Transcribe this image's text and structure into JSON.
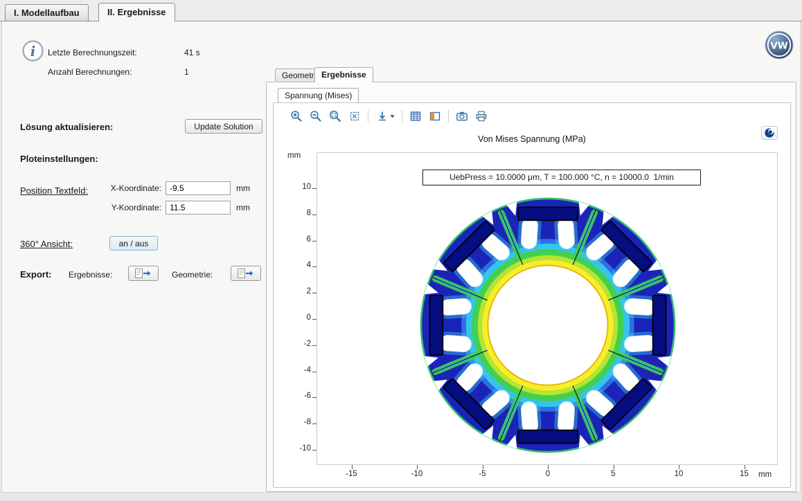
{
  "app": {
    "main_tabs": [
      {
        "label": "I. Modellaufbau",
        "active": false
      },
      {
        "label": "II. Ergebnisse",
        "active": true
      }
    ]
  },
  "sidebar": {
    "stats": [
      {
        "label": "Letzte Berechnungszeit:",
        "value": "41 s"
      },
      {
        "label": "Anzahl Berechnungen:",
        "value": "1"
      }
    ],
    "solution": {
      "label": "Lösung aktualisieren:",
      "button_label": "Update Solution"
    },
    "plot_settings_heading": "Ploteinstellungen:",
    "text_position": {
      "label": "Position Textfeld:",
      "x": {
        "label": "X-Koordinate:",
        "value": "-9.5",
        "unit": "mm"
      },
      "y": {
        "label": "Y-Koordinate:",
        "value": "11.5",
        "unit": "mm"
      }
    },
    "view360": {
      "label": "360° Ansicht:",
      "button_label": "an / aus"
    },
    "export": {
      "label": "Export:",
      "results_label": "Ergebnisse:",
      "geometry_label": "Geometrie:"
    }
  },
  "results_panel": {
    "tabs": [
      {
        "label": "Geometrie",
        "active": false
      },
      {
        "label": "Ergebnisse",
        "active": true
      }
    ],
    "plot_tab": "Spannung (Mises)",
    "toolbar_icons": [
      "zoom-in",
      "zoom-out",
      "zoom-box",
      "zoom-extents",
      "default-view-dropdown",
      "grid",
      "color-legend",
      "snapshot",
      "print"
    ],
    "plot": {
      "title": "Von Mises Spannung (MPa)",
      "annotation": "UebPress = 10.0000 μm, T = 100.000 °C, n = 10000.0  1/min",
      "x_unit": "mm",
      "y_unit": "mm",
      "x_ticks": [
        -15,
        -10,
        -5,
        0,
        5,
        10,
        15
      ],
      "y_ticks": [
        10,
        8,
        6,
        4,
        2,
        0,
        -2,
        -4,
        -6,
        -8,
        -10
      ],
      "colors": {
        "stress_low": "#1b24b8",
        "stress_mid_blue": "#2e6ee4",
        "stress_cyan": "#35c5ec",
        "stress_green": "#43cf52",
        "stress_yellow_green": "#b5e431",
        "stress_high_yellow": "#f6ee2d",
        "magnet": "#060d7e",
        "outline_green": "#2fbe6e",
        "bore_edge": "#e8b400"
      }
    }
  },
  "branding": {
    "logo": "vw-logo"
  }
}
